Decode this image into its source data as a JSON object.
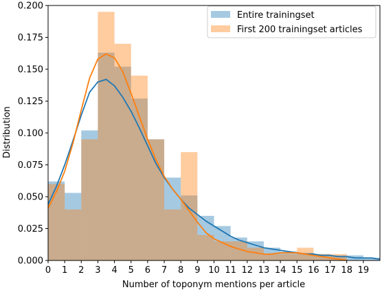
{
  "chart_data": {
    "type": "bar",
    "title": "",
    "xlabel": "Number of toponym mentions per article",
    "ylabel": "Distribution",
    "xlim": [
      0,
      20
    ],
    "ylim": [
      0,
      0.2
    ],
    "x_ticks": [
      "0",
      "1",
      "2",
      "3",
      "4",
      "5",
      "6",
      "7",
      "8",
      "9",
      "10",
      "11",
      "12",
      "13",
      "14",
      "15",
      "16",
      "17",
      "18",
      "19"
    ],
    "y_ticks": [
      "0.000",
      "0.025",
      "0.050",
      "0.075",
      "0.100",
      "0.125",
      "0.150",
      "0.175",
      "0.200"
    ],
    "legend_position": "top-right",
    "grid": false,
    "series": [
      {
        "name": "Entire trainingset",
        "kind": "histogram",
        "color": "#1f77b4",
        "bin_edges": [
          0,
          1,
          2,
          3,
          4,
          5,
          6,
          7,
          8,
          9,
          10,
          11,
          12,
          13,
          14,
          15,
          16,
          17,
          18,
          19,
          20
        ],
        "values": [
          0.062,
          0.053,
          0.102,
          0.163,
          0.152,
          0.127,
          0.095,
          0.065,
          0.051,
          0.035,
          0.027,
          0.018,
          0.015,
          0.01,
          0.007,
          0.006,
          0.005,
          0.004,
          0.004,
          0.002
        ],
        "kde_x": [
          0,
          0.5,
          1,
          1.5,
          2,
          2.5,
          3,
          3.5,
          4,
          4.5,
          5,
          5.5,
          6,
          6.5,
          7,
          7.5,
          8,
          8.5,
          9,
          9.5,
          10,
          10.5,
          11,
          11.5,
          12,
          12.5,
          13,
          13.5,
          14,
          14.5,
          15,
          15.5,
          16,
          16.5,
          17,
          17.5,
          18,
          18.5,
          19,
          19.5,
          20
        ],
        "kde_y": [
          0.044,
          0.058,
          0.075,
          0.094,
          0.114,
          0.132,
          0.14,
          0.142,
          0.137,
          0.128,
          0.117,
          0.104,
          0.09,
          0.076,
          0.065,
          0.056,
          0.048,
          0.041,
          0.036,
          0.031,
          0.027,
          0.023,
          0.019,
          0.016,
          0.014,
          0.012,
          0.01,
          0.009,
          0.008,
          0.007,
          0.006,
          0.005,
          0.005,
          0.004,
          0.004,
          0.003,
          0.003,
          0.002,
          0.002,
          0.002,
          0.001
        ]
      },
      {
        "name": "First 200 trainingset articles",
        "kind": "histogram",
        "color": "#ff7f0e",
        "bin_edges": [
          0,
          1,
          2,
          3,
          4,
          5,
          6,
          7,
          8,
          9,
          10,
          11,
          12,
          13,
          14,
          15,
          16,
          17,
          18,
          19,
          20
        ],
        "values": [
          0.06,
          0.04,
          0.095,
          0.195,
          0.17,
          0.145,
          0.095,
          0.04,
          0.085,
          0.02,
          0.015,
          0.015,
          0.01,
          0.005,
          0.005,
          0.01,
          0.005,
          0.005,
          0.0,
          0.0
        ],
        "kde_x": [
          0,
          0.5,
          1,
          1.5,
          2,
          2.5,
          3,
          3.5,
          4,
          4.5,
          5,
          5.5,
          6,
          6.5,
          7,
          7.5,
          8,
          8.5,
          9,
          9.5,
          10,
          10.5,
          11,
          11.5,
          12,
          12.5,
          13,
          13.5,
          14,
          14.5,
          15,
          15.5,
          16,
          16.5,
          17,
          17.5,
          18
        ],
        "kde_y": [
          0.041,
          0.054,
          0.07,
          0.092,
          0.118,
          0.143,
          0.158,
          0.162,
          0.159,
          0.148,
          0.131,
          0.113,
          0.095,
          0.079,
          0.066,
          0.056,
          0.048,
          0.039,
          0.03,
          0.022,
          0.017,
          0.014,
          0.011,
          0.009,
          0.007,
          0.006,
          0.005,
          0.005,
          0.006,
          0.006,
          0.006,
          0.005,
          0.004,
          0.003,
          0.002,
          0.001,
          0.0
        ]
      }
    ]
  }
}
